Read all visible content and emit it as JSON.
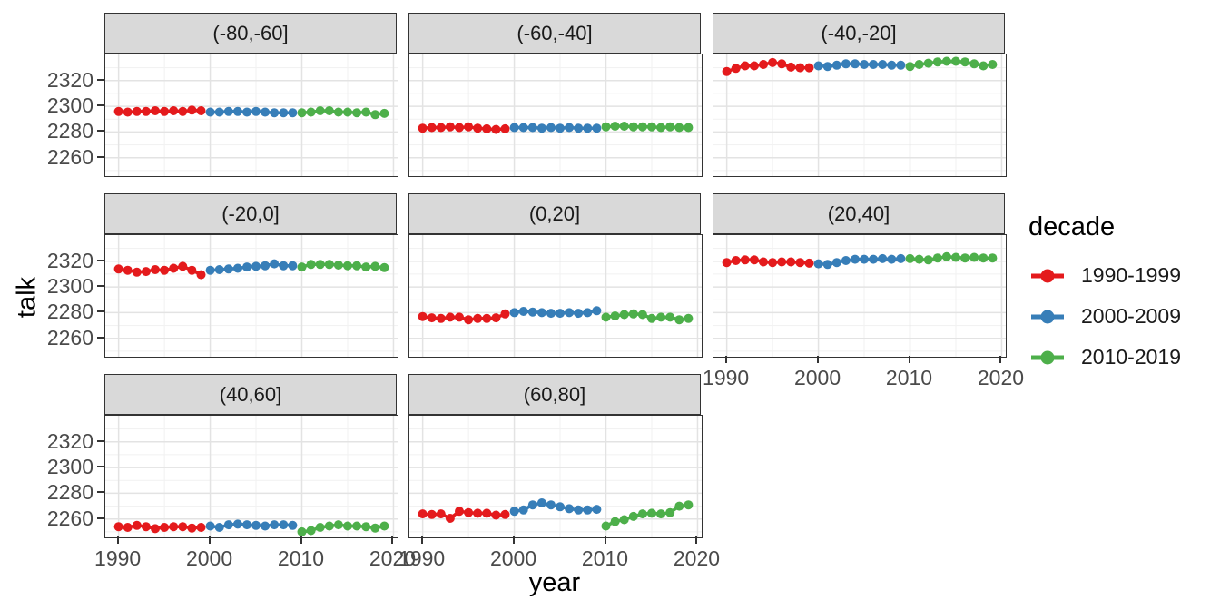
{
  "figure": {
    "y_axis_title": "talk",
    "x_axis_title": "year",
    "legend": {
      "title": "decade",
      "items": [
        {
          "label": "1990-1999",
          "color": "#E41A1C"
        },
        {
          "label": "2000-2009",
          "color": "#377EB8"
        },
        {
          "label": "2010-2019",
          "color": "#4DAF4A"
        }
      ]
    },
    "colors": {
      "strip_bg": "#D9D9D9",
      "panel_border": "#333333",
      "grid_major": "#E3E3E3",
      "grid_minor": "#F1F1F1",
      "tick_text": "#4A4A4A"
    }
  },
  "chart_data": {
    "type": "line",
    "title": "",
    "xlabel": "year",
    "ylabel": "talk",
    "legend_title": "decade",
    "legend_position": "right",
    "grid": true,
    "facet_labels": [
      "(-80,-60]",
      "(-60,-40]",
      "(-40,-20]",
      "(-20,0]",
      "(0,20]",
      "(20,40]",
      "(40,60]",
      "(60,80]"
    ],
    "years": [
      1990,
      1991,
      1992,
      1993,
      1994,
      1995,
      1996,
      1997,
      1998,
      1999,
      2000,
      2001,
      2002,
      2003,
      2004,
      2005,
      2006,
      2007,
      2008,
      2009,
      2010,
      2011,
      2012,
      2013,
      2014,
      2015,
      2016,
      2017,
      2018,
      2019
    ],
    "x_major_ticks": [
      1990,
      2000,
      2010,
      2020
    ],
    "x_minor_ticks": [
      1995,
      2005,
      2015
    ],
    "y_major_ticks": [
      2260,
      2280,
      2300,
      2320
    ],
    "y_minor_ticks": [
      2250,
      2270,
      2290,
      2310,
      2330
    ],
    "x_panel_range": [
      1988.55,
      2020.45
    ],
    "y_panel_range": [
      2245.7,
      2340.3
    ],
    "series": [
      {
        "name": "1990-1999",
        "color": "#E41A1C",
        "year_start": 1990,
        "year_end": 1999
      },
      {
        "name": "2000-2009",
        "color": "#377EB8",
        "year_start": 2000,
        "year_end": 2009
      },
      {
        "name": "2010-2019",
        "color": "#4DAF4A",
        "year_start": 2010,
        "year_end": 2019
      }
    ],
    "facets": [
      {
        "label": "(-80,-60]",
        "values": [
          2296,
          2295.5,
          2296,
          2296,
          2296.5,
          2296,
          2296.5,
          2296,
          2297,
          2296.5,
          2295.5,
          2295.5,
          2296,
          2296,
          2295.5,
          2296,
          2295.5,
          2295,
          2295,
          2295,
          2295,
          2295.5,
          2296.5,
          2296.5,
          2295.5,
          2295.5,
          2295,
          2295.5,
          2293.5,
          2294.5
        ]
      },
      {
        "label": "(-60,-40]",
        "values": [
          2283,
          2283.5,
          2283.5,
          2284,
          2283.5,
          2284,
          2283,
          2282.5,
          2282,
          2282.5,
          2283.5,
          2283.5,
          2283.5,
          2283,
          2283.5,
          2283,
          2283.5,
          2283,
          2283,
          2283,
          2284,
          2284.5,
          2284.5,
          2284,
          2284,
          2284,
          2283.5,
          2284,
          2283.5,
          2283.5
        ]
      },
      {
        "label": "(-40,-20]",
        "values": [
          2327,
          2329.5,
          2331.5,
          2331.5,
          2332.5,
          2334,
          2333,
          2330.5,
          2330,
          2330,
          2331.5,
          2331,
          2332,
          2333,
          2333,
          2332.5,
          2332.5,
          2332.5,
          2332,
          2332,
          2331,
          2332.5,
          2333.5,
          2334.5,
          2335,
          2335,
          2334.5,
          2333,
          2331.5,
          2332.5
        ]
      },
      {
        "label": "(-20,0]",
        "values": [
          2314,
          2313,
          2311.5,
          2312,
          2313.5,
          2313,
          2314.5,
          2316,
          2313,
          2309.5,
          2313,
          2313.5,
          2314,
          2314.5,
          2315.5,
          2316,
          2316.5,
          2318,
          2316.5,
          2316.5,
          2315.5,
          2317.5,
          2317.5,
          2317.5,
          2317,
          2316.5,
          2316.5,
          2315.5,
          2316,
          2315
        ]
      },
      {
        "label": "(0,20]",
        "values": [
          2277,
          2276,
          2275.5,
          2276.5,
          2276.5,
          2274.5,
          2275.5,
          2275.5,
          2276,
          2279,
          2280,
          2281,
          2280.5,
          2280,
          2279.5,
          2279.5,
          2280,
          2279.5,
          2280,
          2281.5,
          2276.5,
          2277.5,
          2278.5,
          2279,
          2278.5,
          2275.5,
          2276.5,
          2276.5,
          2274.5,
          2275.5
        ]
      },
      {
        "label": "(20,40]",
        "values": [
          2319,
          2320.5,
          2321,
          2321,
          2319.5,
          2319,
          2319.5,
          2319.5,
          2319,
          2318.5,
          2318,
          2317.5,
          2319,
          2320.5,
          2321.5,
          2321.5,
          2321.5,
          2322,
          2321.5,
          2322,
          2322,
          2321.5,
          2321,
          2322.5,
          2323.5,
          2323,
          2322.5,
          2323,
          2322.5,
          2322.5
        ]
      },
      {
        "label": "(40,60]",
        "values": [
          2254,
          2253.5,
          2255,
          2254,
          2252.5,
          2253.5,
          2254,
          2254,
          2253,
          2253.5,
          2254.5,
          2253.5,
          2255.5,
          2256,
          2255.5,
          2255,
          2254.5,
          2255.5,
          2255.5,
          2255,
          2250,
          2251,
          2253.5,
          2254.5,
          2255.5,
          2254.5,
          2254.5,
          2254,
          2253,
          2254.5
        ]
      },
      {
        "label": "(60,80]",
        "values": [
          2264,
          2263.5,
          2264,
          2260.5,
          2266,
          2265,
          2264.5,
          2264.5,
          2263,
          2263.5,
          2266,
          2267,
          2271,
          2272.5,
          2271,
          2269.5,
          2268,
          2267,
          2267,
          2267.5,
          2254.5,
          2258,
          2259.5,
          2262,
          2264,
          2264.5,
          2264,
          2265,
          2270,
          2271
        ]
      }
    ]
  }
}
